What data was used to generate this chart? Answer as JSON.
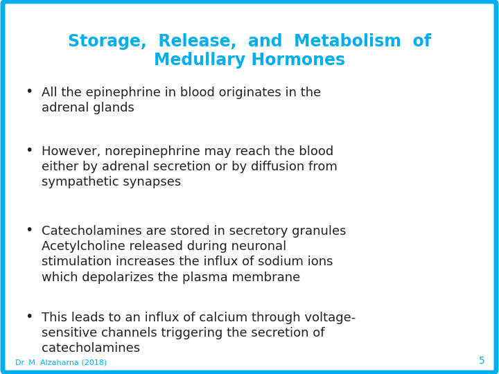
{
  "title_line1": "Storage,  Release,  and  Metabolism  of",
  "title_line2": "Medullary Hormones",
  "title_color": "#00AEEF",
  "background_color": "#FFFFFF",
  "border_color": "#00AEEF",
  "text_color": "#231F20",
  "bullet_points": [
    "All the epinephrine in blood originates in the\nadrenal glands",
    "However, norepinephrine may reach the blood\neither by adrenal secretion or by diffusion from\nsympathetic synapses",
    "Catecholamines are stored in secretory granules\nAcetylcholine released during neuronal\nstimulation increases the influx of sodium ions\nwhich depolarizes the plasma membrane",
    "This leads to an influx of calcium through voltage-\nsensitive channels triggering the secretion of\ncatecholamines"
  ],
  "footer_text": "Dr. M. Alzaharna (2018)",
  "footer_color": "#00AEEF",
  "page_number": "5",
  "page_number_color": "#00AEEF",
  "title_fontsize": 17,
  "bullet_fontsize": 13,
  "footer_fontsize": 8,
  "border_linewidth": 5
}
